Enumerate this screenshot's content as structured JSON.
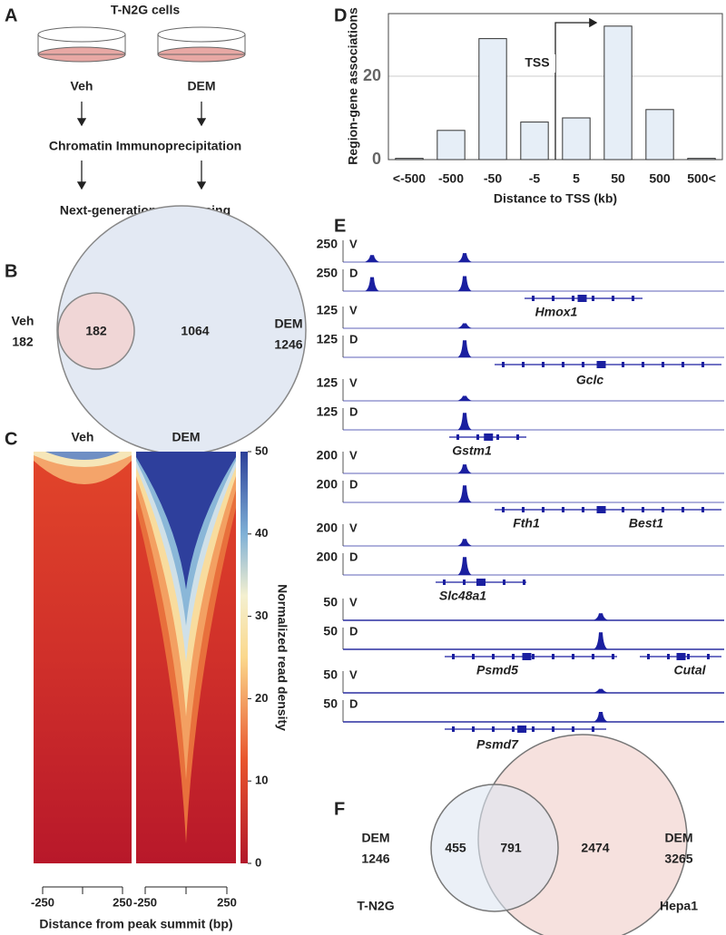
{
  "panel_labels": [
    "A",
    "B",
    "C",
    "D",
    "E",
    "F"
  ],
  "workflow": {
    "title": "T-N2G cells",
    "conditions": [
      "Veh",
      "DEM"
    ],
    "steps": [
      "Chromatin Immunoprecipitation",
      "Next-generation sequencing"
    ]
  },
  "venn_b": {
    "left_label": "Veh",
    "left_total": 182,
    "right_label": "DEM",
    "right_total": 1246,
    "overlap": 182,
    "right_only": 1064
  },
  "heatmap": {
    "columns": [
      "Veh",
      "DEM"
    ],
    "xticks": [
      -250,
      250
    ],
    "xlabel": "Distance from peak summit (bp)",
    "colorbar": {
      "label": "Normalized read density",
      "lim": [
        0,
        50
      ],
      "ticks": [
        0,
        10,
        20,
        30,
        40,
        50
      ]
    }
  },
  "chart_data": {
    "type": "bar",
    "title": null,
    "categories": [
      "<-500",
      "-500",
      "-50",
      "-5",
      "5",
      "50",
      "500",
      "500<"
    ],
    "values": [
      0.3,
      7,
      29,
      9,
      10,
      32,
      12,
      0.3
    ],
    "color": "#e6eef7",
    "ylim": [
      0,
      35
    ],
    "yticks": [
      0,
      20
    ],
    "grid": true,
    "ylabel": "Region-gene associations",
    "xlabel": "Distance to TSS (kb)",
    "annotation": "TSS"
  },
  "tracks": {
    "track_labels": [
      "V",
      "D"
    ],
    "loci": [
      {
        "scale": 250,
        "genes": [
          "Hmox1"
        ]
      },
      {
        "scale": 125,
        "genes": [
          "Gclc"
        ]
      },
      {
        "scale": 125,
        "genes": [
          "Gstm1"
        ]
      },
      {
        "scale": 200,
        "genes": [
          "Fth1",
          "Best1"
        ]
      },
      {
        "scale": 200,
        "genes": [
          "Slc48a1"
        ]
      },
      {
        "scale": 50,
        "genes": [
          "Psmd5",
          "Cutal"
        ]
      },
      {
        "scale": 50,
        "genes": [
          "Psmd7"
        ]
      }
    ]
  },
  "venn_f": {
    "left_label": "DEM",
    "left_total": 1246,
    "left_cell": "T-N2G",
    "left_only": 455,
    "overlap": 791,
    "right_only": 2474,
    "right_label": "DEM",
    "right_total": 3265,
    "right_cell": "Hepa1"
  }
}
